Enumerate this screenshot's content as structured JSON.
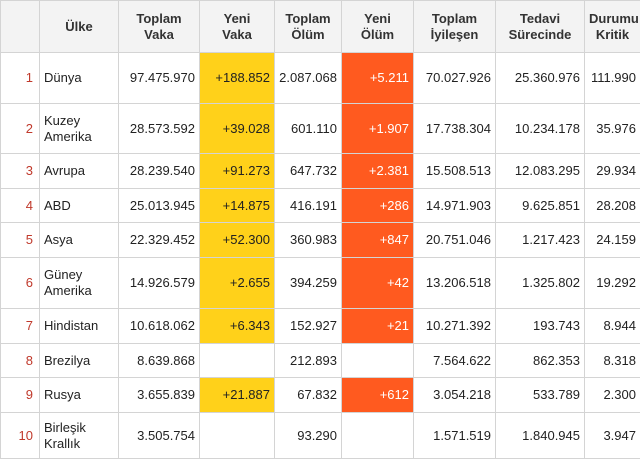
{
  "headers": {
    "idx": "",
    "country": "Ülke",
    "total_cases_l1": "Toplam",
    "total_cases_l2": "Vaka",
    "new_cases_l1": "Yeni",
    "new_cases_l2": "Vaka",
    "total_deaths_l1": "Toplam",
    "total_deaths_l2": "Ölüm",
    "new_deaths_l1": "Yeni",
    "new_deaths_l2": "Ölüm",
    "total_recovered_l1": "Toplam",
    "total_recovered_l2": "İyileşen",
    "active_l1": "Tedavi",
    "active_l2": "Sürecinde",
    "critical_l1": "Durumu",
    "critical_l2": "Kritik"
  },
  "rows": [
    {
      "idx": "1",
      "country": "Dünya",
      "total_cases": "97.475.970",
      "new_cases": "+188.852",
      "total_deaths": "2.087.068",
      "new_deaths": "+5.211",
      "total_recovered": "70.027.926",
      "active": "25.360.976",
      "critical": "111.990"
    },
    {
      "idx": "2",
      "country": "Kuzey Amerika",
      "total_cases": "28.573.592",
      "new_cases": "+39.028",
      "total_deaths": "601.110",
      "new_deaths": "+1.907",
      "total_recovered": "17.738.304",
      "active": "10.234.178",
      "critical": "35.976"
    },
    {
      "idx": "3",
      "country": "Avrupa",
      "total_cases": "28.239.540",
      "new_cases": "+91.273",
      "total_deaths": "647.732",
      "new_deaths": "+2.381",
      "total_recovered": "15.508.513",
      "active": "12.083.295",
      "critical": "29.934"
    },
    {
      "idx": "4",
      "country": "ABD",
      "total_cases": "25.013.945",
      "new_cases": "+14.875",
      "total_deaths": "416.191",
      "new_deaths": "+286",
      "total_recovered": "14.971.903",
      "active": "9.625.851",
      "critical": "28.208"
    },
    {
      "idx": "5",
      "country": "Asya",
      "total_cases": "22.329.452",
      "new_cases": "+52.300",
      "total_deaths": "360.983",
      "new_deaths": "+847",
      "total_recovered": "20.751.046",
      "active": "1.217.423",
      "critical": "24.159"
    },
    {
      "idx": "6",
      "country": "Güney Amerika",
      "total_cases": "14.926.579",
      "new_cases": "+2.655",
      "total_deaths": "394.259",
      "new_deaths": "+42",
      "total_recovered": "13.206.518",
      "active": "1.325.802",
      "critical": "19.292"
    },
    {
      "idx": "7",
      "country": "Hindistan",
      "total_cases": "10.618.062",
      "new_cases": "+6.343",
      "total_deaths": "152.927",
      "new_deaths": "+21",
      "total_recovered": "10.271.392",
      "active": "193.743",
      "critical": "8.944"
    },
    {
      "idx": "8",
      "country": "Brezilya",
      "total_cases": "8.639.868",
      "new_cases": "",
      "total_deaths": "212.893",
      "new_deaths": "",
      "total_recovered": "7.564.622",
      "active": "862.353",
      "critical": "8.318"
    },
    {
      "idx": "9",
      "country": "Rusya",
      "total_cases": "3.655.839",
      "new_cases": "+21.887",
      "total_deaths": "67.832",
      "new_deaths": "+612",
      "total_recovered": "3.054.218",
      "active": "533.789",
      "critical": "2.300"
    },
    {
      "idx": "10",
      "country": "Birleşik Krallık",
      "total_cases": "3.505.754",
      "new_cases": "",
      "total_deaths": "93.290",
      "new_deaths": "",
      "total_recovered": "1.571.519",
      "active": "1.840.945",
      "critical": "3.947"
    }
  ],
  "colors": {
    "new_cases_bg": "#ffd11a",
    "new_deaths_bg": "#ff5a1f",
    "index_text": "#c0392b"
  }
}
